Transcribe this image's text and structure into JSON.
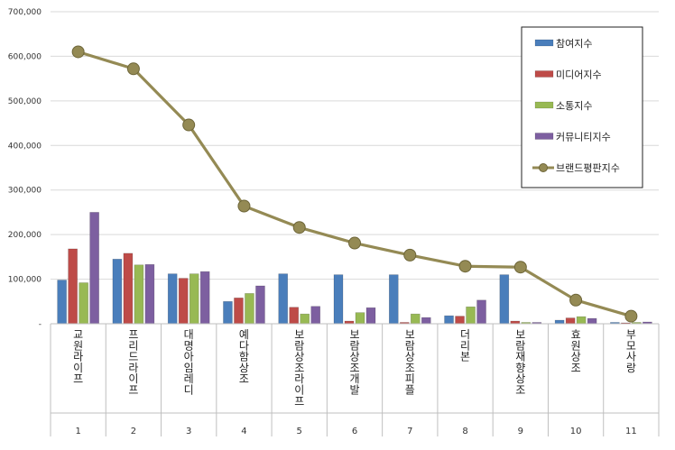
{
  "chart_data": {
    "type": "bar",
    "title": "",
    "xlabel": "",
    "ylabel": "",
    "ylim": [
      0,
      700000
    ],
    "yticks": [
      "-",
      "100,000",
      "200,000",
      "300,000",
      "400,000",
      "500,000",
      "600,000",
      "700,000"
    ],
    "grid": true,
    "legend_position": "top-right",
    "categories": [
      "교원라이프",
      "프리드라이프",
      "대명아임레디",
      "예다함상조",
      "보람상조라이프",
      "보람상조개발",
      "보람상조피플",
      "더리본",
      "보람재향상조",
      "효원상조",
      "부모사랑"
    ],
    "ranks": [
      "1",
      "2",
      "3",
      "4",
      "5",
      "6",
      "7",
      "8",
      "9",
      "10",
      "11"
    ],
    "series": [
      {
        "name": "참여지수",
        "type": "bar",
        "color": "#4a7ebb",
        "values": [
          98000,
          145000,
          112000,
          50000,
          112000,
          110000,
          110000,
          18000,
          110000,
          8000,
          3000
        ]
      },
      {
        "name": "미디어지수",
        "type": "bar",
        "color": "#be4b48",
        "values": [
          168000,
          158000,
          102000,
          58000,
          37000,
          6000,
          3000,
          17000,
          6000,
          13000,
          2000
        ]
      },
      {
        "name": "소통지수",
        "type": "bar",
        "color": "#98b954",
        "values": [
          92000,
          132000,
          112000,
          68000,
          22000,
          25000,
          22000,
          38000,
          3000,
          16000,
          3000
        ]
      },
      {
        "name": "커뮤니티지수",
        "type": "bar",
        "color": "#7d5fa0",
        "values": [
          250000,
          133000,
          117000,
          85000,
          39000,
          36000,
          14000,
          53000,
          3000,
          12000,
          4000
        ]
      },
      {
        "name": "브랜드평판지수",
        "type": "line",
        "color": "#948a54",
        "values": [
          610000,
          572000,
          446000,
          264000,
          216000,
          181000,
          154000,
          129000,
          127000,
          53000,
          17000
        ]
      }
    ]
  }
}
